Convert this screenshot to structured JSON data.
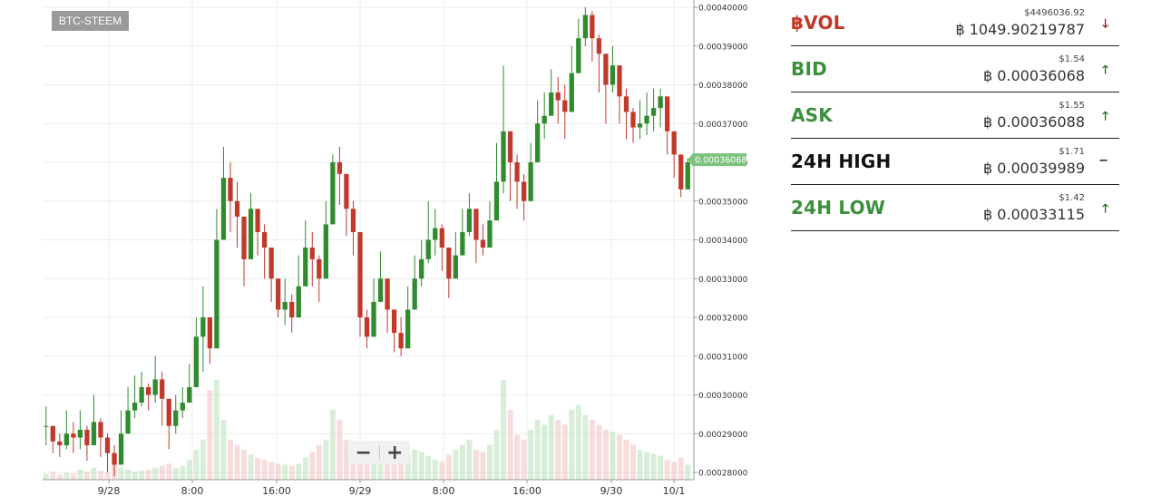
{
  "pair": "BTC-STEEM",
  "zoom": {
    "minus": "−",
    "plus": "+"
  },
  "colors": {
    "up": "#2e8b2e",
    "down": "#c0392b",
    "red_label": "#c0392b",
    "green_label": "#3c8f3c",
    "dark_label": "#111111",
    "price_tag": "#7cc27c"
  },
  "stats": [
    {
      "label": "฿VOL",
      "usd": "$4496036.92",
      "btc": "฿ 1049.90219787",
      "trend": "down",
      "arrow": "🡓",
      "color": "#c0392b"
    },
    {
      "label": "BID",
      "usd": "$1.54",
      "btc": "฿ 0.00036068",
      "trend": "up",
      "arrow": "🡑",
      "color": "#3c8f3c"
    },
    {
      "label": "ASK",
      "usd": "$1.55",
      "btc": "฿ 0.00036088",
      "trend": "up",
      "arrow": "🡑",
      "color": "#3c8f3c"
    },
    {
      "label": "24H HIGH",
      "usd": "$1.71",
      "btc": "฿ 0.00039989",
      "trend": "flat",
      "arrow": "−",
      "color": "#111111"
    },
    {
      "label": "24H LOW",
      "usd": "$1.42",
      "btc": "฿ 0.00033115",
      "trend": "up",
      "arrow": "🡑",
      "color": "#3c8f3c"
    }
  ],
  "chart_data": {
    "type": "line",
    "title": "BTC-STEEM",
    "xlabel": "",
    "ylabel": "",
    "ylim": [
      0.00028,
      0.0004
    ],
    "y_ticks": [
      "0.00040000",
      "0.00039000",
      "0.00038000",
      "0.00037000",
      "0.00036000",
      "0.00035000",
      "0.00034000",
      "0.00033000",
      "0.00032000",
      "0.00031000",
      "0.00030000",
      "0.00029000",
      "0.00028000"
    ],
    "x_ticks": [
      "9/28",
      "8:00",
      "16:00",
      "9/29",
      "8:00",
      "16:00",
      "9/30",
      "10/1"
    ],
    "last_price": "0.00036068",
    "grid": true,
    "series": [
      {
        "values": [
          0.000292,
          0.000288,
          0.000287,
          0.00029,
          0.000289,
          0.000291,
          0.000287,
          0.000293,
          0.000289,
          0.000285,
          0.000282,
          0.00029,
          0.000296,
          0.000298,
          0.000302,
          0.0003,
          0.000304,
          0.000299,
          0.000292,
          0.000296,
          0.000298,
          0.000302,
          0.000315,
          0.00032,
          0.000312,
          0.00034,
          0.000356,
          0.00035,
          0.000346,
          0.000335,
          0.000348,
          0.000342,
          0.000338,
          0.00033,
          0.000322,
          0.000324,
          0.00032,
          0.000328,
          0.000338,
          0.000335,
          0.00033,
          0.000344,
          0.00036,
          0.000357,
          0.000348,
          0.000342,
          0.00032,
          0.000315,
          0.000324,
          0.00033,
          0.000322,
          0.000316,
          0.000312,
          0.000322,
          0.00033,
          0.000335,
          0.00034,
          0.000343,
          0.000338,
          0.00033,
          0.000336,
          0.000342,
          0.000348,
          0.00034,
          0.000338,
          0.000345,
          0.000355,
          0.000368,
          0.00036,
          0.000355,
          0.00035,
          0.00036,
          0.00037,
          0.000372,
          0.000378,
          0.000376,
          0.000373,
          0.000383,
          0.000392,
          0.000398,
          0.000392,
          0.000388,
          0.00038,
          0.000385,
          0.000377,
          0.000373,
          0.000369,
          0.00037,
          0.000372,
          0.000374,
          0.000377,
          0.000368,
          0.000362,
          0.000353,
          0.00036
        ],
        "highs": [
          0.000297,
          0.000292,
          0.00029,
          0.000296,
          0.000293,
          0.000296,
          0.000292,
          0.0003,
          0.000294,
          0.00029,
          0.000287,
          0.000296,
          0.000302,
          0.000305,
          0.000306,
          0.000303,
          0.00031,
          0.000306,
          0.000299,
          0.0003,
          0.000302,
          0.000308,
          0.00032,
          0.000328,
          0.000318,
          0.000348,
          0.000364,
          0.00036,
          0.000355,
          0.000345,
          0.000352,
          0.000346,
          0.000344,
          0.000336,
          0.00033,
          0.00033,
          0.000326,
          0.000336,
          0.000345,
          0.000342,
          0.000336,
          0.00035,
          0.000362,
          0.000364,
          0.000355,
          0.00035,
          0.00033,
          0.000322,
          0.00033,
          0.000337,
          0.000328,
          0.000322,
          0.00032,
          0.000328,
          0.000336,
          0.00034,
          0.00035,
          0.000348,
          0.000344,
          0.000338,
          0.000342,
          0.000348,
          0.000352,
          0.000346,
          0.000344,
          0.00035,
          0.000365,
          0.000385,
          0.000367,
          0.000362,
          0.000357,
          0.000365,
          0.000376,
          0.000378,
          0.000384,
          0.000382,
          0.00038,
          0.00039,
          0.000397,
          0.0004,
          0.000399,
          0.000393,
          0.000386,
          0.00039,
          0.000382,
          0.000379,
          0.000374,
          0.000376,
          0.000378,
          0.000379,
          0.000379,
          0.000373,
          0.000366,
          0.000357,
          0.000361
        ],
        "lows": [
          0.000287,
          0.000285,
          0.000284,
          0.000286,
          0.000285,
          0.000286,
          0.000283,
          0.000288,
          0.000284,
          0.00028,
          0.000279,
          0.000283,
          0.000291,
          0.000294,
          0.000297,
          0.000296,
          0.000298,
          0.000292,
          0.000286,
          0.00029,
          0.000294,
          0.000298,
          0.00031,
          0.000306,
          0.000308,
          0.00033,
          0.000345,
          0.000342,
          0.000338,
          0.000328,
          0.00034,
          0.000336,
          0.00033,
          0.000324,
          0.00032,
          0.000318,
          0.000316,
          0.000322,
          0.000332,
          0.000328,
          0.000324,
          0.000335,
          0.000352,
          0.000349,
          0.000341,
          0.000336,
          0.000315,
          0.000312,
          0.000318,
          0.000324,
          0.000316,
          0.000311,
          0.00031,
          0.000316,
          0.000325,
          0.000328,
          0.000334,
          0.000336,
          0.000332,
          0.000325,
          0.00033,
          0.000336,
          0.000341,
          0.000334,
          0.000336,
          0.000339,
          0.000348,
          0.000352,
          0.00035,
          0.000348,
          0.000345,
          0.000352,
          0.000362,
          0.000366,
          0.000372,
          0.00037,
          0.000366,
          0.000376,
          0.000384,
          0.00039,
          0.000386,
          0.000378,
          0.00037,
          0.000378,
          0.00037,
          0.000366,
          0.000365,
          0.000366,
          0.000367,
          0.000368,
          0.000369,
          0.000362,
          0.000356,
          0.000351,
          0.000355
        ],
        "volume": [
          6,
          8,
          5,
          7,
          6,
          10,
          8,
          12,
          9,
          7,
          18,
          12,
          10,
          8,
          9,
          10,
          12,
          14,
          16,
          12,
          14,
          20,
          30,
          40,
          90,
          100,
          60,
          40,
          35,
          30,
          25,
          22,
          20,
          18,
          16,
          15,
          14,
          16,
          22,
          28,
          35,
          40,
          70,
          60,
          40,
          30,
          25,
          20,
          30,
          25,
          20,
          18,
          22,
          25,
          30,
          28,
          24,
          20,
          18,
          25,
          30,
          35,
          40,
          30,
          28,
          35,
          50,
          100,
          70,
          45,
          40,
          50,
          60,
          55,
          65,
          60,
          55,
          70,
          75,
          65,
          60,
          55,
          50,
          48,
          45,
          40,
          35,
          30,
          28,
          26,
          24,
          20,
          18,
          22,
          15
        ]
      }
    ]
  }
}
